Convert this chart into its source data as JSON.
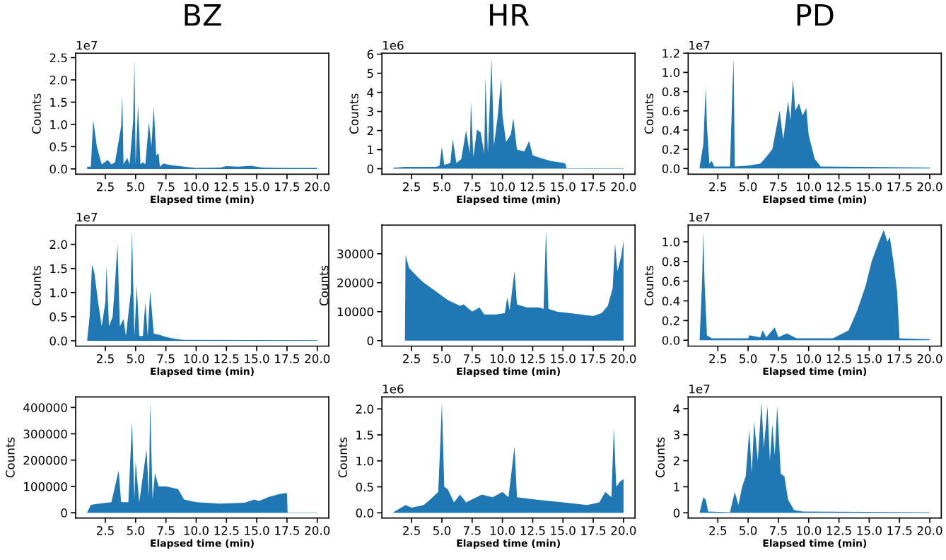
{
  "chart_data": [
    {
      "type": "area",
      "title": "BZ",
      "xlabel": "Elapsed time (min)",
      "ylabel": "Counts",
      "annotations": [
        "1e7"
      ],
      "color": "#1f77b4",
      "x": [
        1.0,
        1.3,
        1.5,
        1.6,
        1.8,
        2.2,
        2.7,
        3.0,
        3.3,
        3.8,
        3.9,
        4.0,
        4.3,
        4.5,
        4.8,
        4.9,
        5.0,
        5.2,
        5.4,
        5.6,
        5.8,
        6.1,
        6.3,
        6.5,
        6.7,
        6.9,
        7.0,
        7.3,
        7.6,
        8.0,
        9.0,
        10.0,
        12.0,
        12.5,
        13.5,
        14.5,
        15.5,
        17.0,
        20.0
      ],
      "values": [
        0.05,
        0.05,
        1.1,
        0.9,
        0.5,
        0.1,
        0.2,
        0.1,
        0.15,
        0.95,
        1.65,
        0.1,
        0.25,
        0.1,
        1.1,
        2.45,
        0.1,
        1.45,
        0.1,
        0.15,
        0.1,
        1.05,
        0.5,
        1.4,
        0.3,
        0.35,
        0.05,
        0.12,
        0.1,
        0.08,
        0.05,
        0.02,
        0.03,
        0.06,
        0.05,
        0.07,
        0.03,
        0.02,
        0.02
      ],
      "xlim": [
        0.05,
        20.95
      ],
      "ylim": [
        -0.12,
        2.6
      ],
      "xticks": [
        {
          "value": 2.5,
          "label": "2.5"
        },
        {
          "value": 5,
          "label": "5.0"
        },
        {
          "value": 7.5,
          "label": "7.5"
        },
        {
          "value": 10,
          "label": "10.0"
        },
        {
          "value": 12.5,
          "label": "12.5"
        },
        {
          "value": 15,
          "label": "15.0"
        },
        {
          "value": 17.5,
          "label": "17.5"
        },
        {
          "value": 20,
          "label": "20.0"
        }
      ],
      "yticks": [
        {
          "value": 0,
          "label": "0.0"
        },
        0.5,
        {
          "value": 1,
          "label": "1.0"
        },
        1.5,
        {
          "value": 2,
          "label": "2.0"
        },
        2.5
      ]
    },
    {
      "type": "area",
      "title": "HR",
      "xlabel": "Elapsed time (min)",
      "ylabel": "Counts",
      "annotations": [
        "1e6"
      ],
      "color": "#1f77b4",
      "x": [
        1.0,
        2.0,
        4.5,
        4.8,
        5.0,
        5.2,
        5.7,
        5.9,
        6.2,
        6.6,
        7.0,
        7.3,
        7.4,
        7.6,
        7.9,
        8.2,
        8.5,
        8.6,
        8.8,
        9.1,
        9.3,
        9.6,
        9.9,
        10.0,
        10.3,
        10.7,
        10.9,
        11.2,
        11.8,
        12.2,
        12.5,
        13.2,
        14.0,
        14.6,
        15.1,
        15.2,
        15.3,
        20.0
      ],
      "values": [
        0.05,
        0.1,
        0.1,
        0.15,
        1.15,
        0.2,
        0.3,
        1.55,
        0.3,
        0.5,
        2.0,
        0.8,
        3.5,
        0.6,
        2.05,
        1.9,
        0.8,
        4.8,
        0.8,
        5.75,
        1.2,
        2.7,
        4.7,
        2.8,
        1.4,
        1.8,
        2.65,
        1.0,
        0.9,
        1.45,
        0.7,
        0.55,
        0.4,
        0.35,
        0.3,
        0.25,
        0.02,
        0.02
      ],
      "xlim": [
        0.05,
        20.95
      ],
      "ylim": [
        -0.29,
        6.05
      ],
      "xticks": [
        {
          "value": 2.5,
          "label": "2.5"
        },
        {
          "value": 5,
          "label": "5.0"
        },
        {
          "value": 7.5,
          "label": "7.5"
        },
        {
          "value": 10,
          "label": "10.0"
        },
        {
          "value": 12.5,
          "label": "12.5"
        },
        {
          "value": 15,
          "label": "15.0"
        },
        {
          "value": 17.5,
          "label": "17.5"
        },
        {
          "value": 20,
          "label": "20.0"
        }
      ],
      "yticks": [
        0,
        1,
        2,
        3,
        4,
        5,
        6
      ]
    },
    {
      "type": "area",
      "title": "PD",
      "xlabel": "Elapsed time (min)",
      "ylabel": "Counts",
      "annotations": [
        "1e7"
      ],
      "color": "#1f77b4",
      "x": [
        1.0,
        1.3,
        1.5,
        1.6,
        1.8,
        2.0,
        2.2,
        3.5,
        3.7,
        3.8,
        3.9,
        5.0,
        6.0,
        6.5,
        7.0,
        7.6,
        7.9,
        8.3,
        8.5,
        8.7,
        8.9,
        9.2,
        9.5,
        9.8,
        10.0,
        10.5,
        11.0,
        20.0
      ],
      "values": [
        0.02,
        0.25,
        0.85,
        0.45,
        0.05,
        0.08,
        0.02,
        0.02,
        0.8,
        1.15,
        0.02,
        0.03,
        0.05,
        0.12,
        0.2,
        0.6,
        0.3,
        0.7,
        0.5,
        0.93,
        0.6,
        0.68,
        0.55,
        0.63,
        0.35,
        0.1,
        0.02,
        0.01
      ],
      "xlim": [
        0.05,
        20.95
      ],
      "ylim": [
        -0.06,
        1.2
      ],
      "xticks": [
        {
          "value": 2.5,
          "label": "2.5"
        },
        {
          "value": 5,
          "label": "5.0"
        },
        {
          "value": 7.5,
          "label": "7.5"
        },
        {
          "value": 10,
          "label": "10.0"
        },
        {
          "value": 12.5,
          "label": "12.5"
        },
        {
          "value": 15,
          "label": "15.0"
        },
        {
          "value": 17.5,
          "label": "17.5"
        },
        {
          "value": 20,
          "label": "20.0"
        }
      ],
      "yticks": [
        {
          "value": 0,
          "label": "0.0"
        },
        0.2,
        0.4,
        0.6,
        0.8,
        {
          "value": 1,
          "label": "1.0"
        },
        1.2
      ]
    },
    {
      "type": "area",
      "xlabel": "Elapsed time (min)",
      "ylabel": "Counts",
      "annotations": [
        "1e7"
      ],
      "color": "#1f77b4",
      "x": [
        1.0,
        1.2,
        1.4,
        1.6,
        1.9,
        2.2,
        2.5,
        2.6,
        2.8,
        3.1,
        3.3,
        3.5,
        3.7,
        4.0,
        4.2,
        4.6,
        4.7,
        4.9,
        5.1,
        5.3,
        5.6,
        5.8,
        6.0,
        6.2,
        6.5,
        7.0,
        7.5,
        8.0,
        9.0,
        20.0
      ],
      "values": [
        0.02,
        0.5,
        1.58,
        1.4,
        0.8,
        0.3,
        0.8,
        1.55,
        0.3,
        0.5,
        1.2,
        2.0,
        0.3,
        0.45,
        0.1,
        1.0,
        2.28,
        0.1,
        1.15,
        0.1,
        0.1,
        0.8,
        0.1,
        1.03,
        0.15,
        0.12,
        0.08,
        0.05,
        0.02,
        0.01
      ],
      "xlim": [
        0.05,
        20.95
      ],
      "ylim": [
        -0.11,
        2.4
      ],
      "xticks": [
        {
          "value": 2.5,
          "label": "2.5"
        },
        {
          "value": 5,
          "label": "5.0"
        },
        {
          "value": 7.5,
          "label": "7.5"
        },
        {
          "value": 10,
          "label": "10.0"
        },
        {
          "value": 12.5,
          "label": "12.5"
        },
        {
          "value": 15,
          "label": "15.0"
        },
        {
          "value": 17.5,
          "label": "17.5"
        },
        {
          "value": 20,
          "label": "20.0"
        }
      ],
      "yticks": [
        {
          "value": 0,
          "label": "0.0"
        },
        0.5,
        {
          "value": 1,
          "label": "1.0"
        },
        1.5,
        {
          "value": 2,
          "label": "2.0"
        }
      ]
    },
    {
      "type": "area",
      "xlabel": "Elapsed time (min)",
      "ylabel": "Counts",
      "color": "#1f77b4",
      "x": [
        1.0,
        1.95,
        2.0,
        2.3,
        3.0,
        3.5,
        4.5,
        5.5,
        6.5,
        6.8,
        7.5,
        8.1,
        8.5,
        9.5,
        10.2,
        10.4,
        10.6,
        11.0,
        11.2,
        12.0,
        13.0,
        13.4,
        13.6,
        13.8,
        14.5,
        15.5,
        16.5,
        17.5,
        18.2,
        18.7,
        19.1,
        19.3,
        19.5,
        19.8,
        20.0
      ],
      "values": [
        0,
        0,
        29500,
        25000,
        22000,
        20000,
        17000,
        14000,
        12000,
        12500,
        10000,
        11500,
        9000,
        9000,
        9500,
        15000,
        10500,
        24000,
        12500,
        11500,
        11500,
        11000,
        38000,
        11000,
        10000,
        9500,
        9000,
        8500,
        9500,
        12000,
        18000,
        33500,
        24000,
        29000,
        34500
      ],
      "xlim": [
        0.05,
        20.95
      ],
      "ylim": [
        -1900,
        39900
      ],
      "xticks": [
        {
          "value": 2.5,
          "label": "2.5"
        },
        {
          "value": 5,
          "label": "5.0"
        },
        {
          "value": 7.5,
          "label": "7.5"
        },
        {
          "value": 10,
          "label": "10.0"
        },
        {
          "value": 12.5,
          "label": "12.5"
        },
        {
          "value": 15,
          "label": "15.0"
        },
        {
          "value": 17.5,
          "label": "17.5"
        },
        {
          "value": 20,
          "label": "20.0"
        }
      ],
      "yticks": [
        0,
        10000,
        20000,
        30000
      ]
    },
    {
      "type": "area",
      "xlabel": "Elapsed time (min)",
      "ylabel": "Counts",
      "annotations": [
        "1e7"
      ],
      "color": "#1f77b4",
      "x": [
        1.0,
        1.2,
        1.3,
        1.4,
        1.6,
        2.0,
        5.0,
        5.1,
        6.0,
        6.2,
        6.5,
        7.2,
        7.5,
        8.2,
        9.0,
        12.0,
        12.5,
        13.3,
        14.0,
        14.7,
        15.2,
        15.8,
        16.2,
        16.5,
        16.7,
        17.0,
        17.3,
        17.5,
        20.0
      ],
      "values": [
        0.02,
        0.6,
        1.1,
        0.6,
        0.05,
        0.02,
        0.02,
        0.05,
        0.03,
        0.1,
        0.03,
        0.13,
        0.03,
        0.07,
        0.02,
        0.02,
        0.05,
        0.1,
        0.3,
        0.55,
        0.8,
        1.0,
        1.12,
        1.0,
        1.05,
        0.8,
        0.5,
        0.02,
        0.01
      ],
      "xlim": [
        0.05,
        20.95
      ],
      "ylim": [
        -0.06,
        1.17
      ],
      "xticks": [
        {
          "value": 2.5,
          "label": "2.5"
        },
        {
          "value": 5,
          "label": "5.0"
        },
        {
          "value": 7.5,
          "label": "7.5"
        },
        {
          "value": 10,
          "label": "10.0"
        },
        {
          "value": 12.5,
          "label": "12.5"
        },
        {
          "value": 15,
          "label": "15.0"
        },
        {
          "value": 17.5,
          "label": "17.5"
        },
        {
          "value": 20,
          "label": "20.0"
        }
      ],
      "yticks": [
        {
          "value": 0,
          "label": "0.0"
        },
        0.2,
        0.4,
        0.6,
        0.8,
        {
          "value": 1,
          "label": "1.0"
        }
      ]
    },
    {
      "type": "area",
      "xlabel": "Elapsed time (min)",
      "ylabel": "Counts",
      "color": "#1f77b4",
      "x": [
        1.0,
        1.3,
        2.0,
        3.0,
        3.6,
        3.8,
        4.4,
        4.7,
        4.9,
        5.0,
        5.3,
        5.9,
        6.1,
        6.2,
        6.4,
        6.6,
        6.9,
        7.5,
        8.0,
        8.5,
        9.0,
        10.0,
        12.0,
        14.0,
        14.8,
        15.2,
        16.0,
        17.0,
        17.5,
        17.55,
        20.0
      ],
      "values": [
        1000,
        30000,
        35000,
        40000,
        160000,
        40000,
        40000,
        345000,
        50000,
        195000,
        40000,
        240000,
        60000,
        420000,
        50000,
        150000,
        100000,
        100000,
        95000,
        90000,
        50000,
        40000,
        35000,
        38000,
        50000,
        45000,
        60000,
        72000,
        75000,
        1000,
        1000
      ],
      "xlim": [
        0.05,
        20.95
      ],
      "ylim": [
        -20000,
        440000
      ],
      "xticks": [
        {
          "value": 2.5,
          "label": "2.5"
        },
        {
          "value": 5,
          "label": "5.0"
        },
        {
          "value": 7.5,
          "label": "7.5"
        },
        {
          "value": 10,
          "label": "10.0"
        },
        {
          "value": 12.5,
          "label": "12.5"
        },
        {
          "value": 15,
          "label": "15.0"
        },
        {
          "value": 17.5,
          "label": "17.5"
        },
        {
          "value": 20,
          "label": "20.0"
        }
      ],
      "yticks": [
        0,
        100000,
        200000,
        300000,
        400000
      ]
    },
    {
      "type": "area",
      "xlabel": "Elapsed time (min)",
      "ylabel": "Counts",
      "annotations": [
        "1e6"
      ],
      "color": "#1f77b4",
      "x": [
        1.0,
        2.0,
        2.5,
        3.5,
        4.0,
        4.7,
        4.9,
        5.0,
        5.2,
        5.5,
        6.0,
        6.5,
        7.0,
        8.3,
        9.2,
        10.0,
        10.5,
        11.0,
        11.2,
        13.0,
        15.0,
        17.0,
        18.0,
        18.5,
        19.0,
        19.2,
        19.4,
        19.7,
        20.0
      ],
      "values": [
        0.01,
        0.15,
        0.1,
        0.15,
        0.25,
        0.4,
        1.5,
        2.12,
        0.5,
        0.45,
        0.2,
        0.35,
        0.2,
        0.35,
        0.3,
        0.4,
        0.3,
        1.28,
        0.3,
        0.25,
        0.2,
        0.15,
        0.2,
        0.4,
        0.3,
        1.63,
        0.5,
        0.6,
        0.65
      ],
      "xlim": [
        0.05,
        20.95
      ],
      "ylim": [
        -0.1,
        2.23
      ],
      "xticks": [
        {
          "value": 2.5,
          "label": "2.5"
        },
        {
          "value": 5,
          "label": "5.0"
        },
        {
          "value": 7.5,
          "label": "7.5"
        },
        {
          "value": 10,
          "label": "10.0"
        },
        {
          "value": 12.5,
          "label": "12.5"
        },
        {
          "value": 15,
          "label": "15.0"
        },
        {
          "value": 17.5,
          "label": "17.5"
        },
        {
          "value": 20,
          "label": "20.0"
        }
      ],
      "yticks": [
        {
          "value": 0,
          "label": "0.0"
        },
        0.5,
        {
          "value": 1,
          "label": "1.0"
        },
        1.5,
        {
          "value": 2,
          "label": "2.0"
        }
      ]
    },
    {
      "type": "area",
      "xlabel": "Elapsed time (min)",
      "ylabel": "Counts",
      "annotations": [
        "1e7"
      ],
      "color": "#1f77b4",
      "x": [
        1.0,
        1.3,
        1.5,
        1.7,
        3.5,
        3.9,
        4.2,
        4.5,
        4.8,
        5.1,
        5.3,
        5.5,
        5.8,
        6.1,
        6.3,
        6.6,
        6.8,
        7.0,
        7.2,
        7.4,
        7.7,
        8.0,
        8.3,
        8.8,
        9.5,
        20.0
      ],
      "values": [
        0.02,
        0.6,
        0.5,
        0.05,
        0.02,
        0.8,
        0.3,
        1.0,
        1.4,
        3.2,
        1.5,
        3.5,
        2.0,
        4.25,
        2.5,
        4.1,
        2.0,
        3.4,
        2.2,
        4.1,
        1.5,
        1.4,
        0.5,
        0.1,
        0.05,
        0.02
      ],
      "xlim": [
        0.05,
        20.95
      ],
      "ylim": [
        -0.2,
        4.45
      ],
      "xticks": [
        {
          "value": 2.5,
          "label": "2.5"
        },
        {
          "value": 5,
          "label": "5.0"
        },
        {
          "value": 7.5,
          "label": "7.5"
        },
        {
          "value": 10,
          "label": "10.0"
        },
        {
          "value": 12.5,
          "label": "12.5"
        },
        {
          "value": 15,
          "label": "15.0"
        },
        {
          "value": 17.5,
          "label": "17.5"
        },
        {
          "value": 20,
          "label": "20.0"
        }
      ],
      "yticks": [
        0,
        1,
        2,
        3,
        4
      ]
    }
  ]
}
